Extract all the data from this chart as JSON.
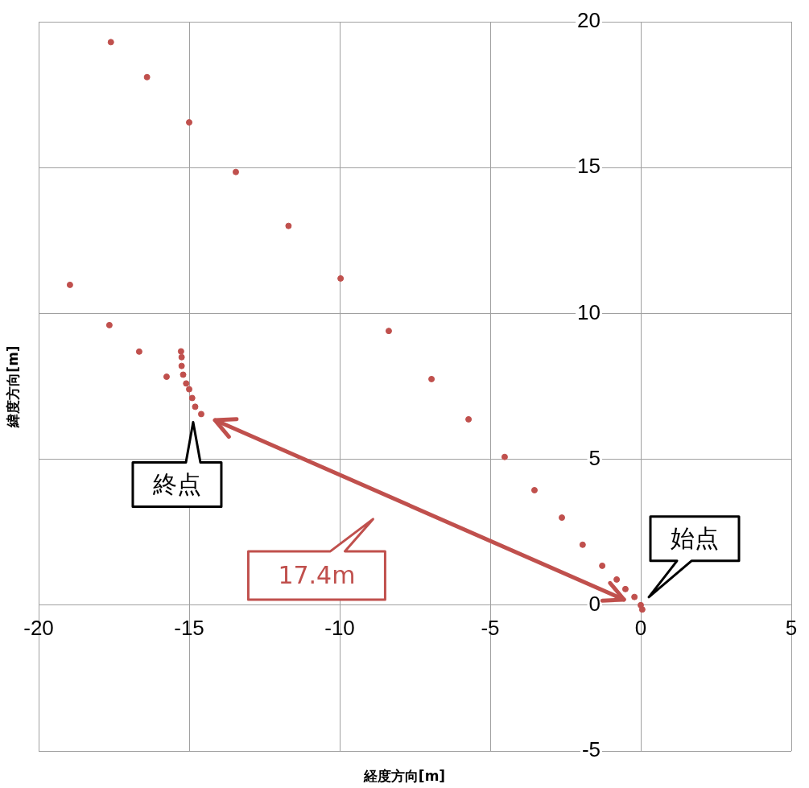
{
  "chart_data": {
    "type": "scatter",
    "xlabel": "経度方向[m]",
    "ylabel": "緯度方向[m]",
    "xlim": [
      -20,
      5
    ],
    "xticks": [
      -20,
      -15,
      -10,
      -5,
      0,
      5
    ],
    "ylim": [
      -5,
      20
    ],
    "yticks": [
      -5,
      0,
      5,
      10,
      15,
      20
    ],
    "grid": true,
    "legend": false,
    "marker": "circle",
    "series": [
      {
        "color": "#c0504d",
        "x": [
          -17.6,
          -16.4,
          -15.0,
          -13.45,
          -11.7,
          -9.97,
          -8.37,
          -6.95,
          -5.72,
          -4.52,
          -3.53,
          -2.62,
          -1.93,
          -1.28,
          -0.8,
          -0.51,
          -0.21,
          0,
          0.05,
          -18.96,
          -17.65,
          -16.66,
          -15.75,
          -15.27,
          -15.25,
          -15.25,
          -15.2,
          -15.1,
          -15.0,
          -14.9,
          -14.8,
          -14.6
        ],
        "values": [
          19.3,
          18.1,
          16.55,
          14.85,
          13.0,
          11.2,
          9.4,
          7.75,
          6.37,
          5.08,
          3.94,
          3.0,
          2.07,
          1.35,
          0.88,
          0.55,
          0.28,
          0,
          -0.15,
          10.98,
          9.6,
          8.69,
          7.83,
          8.7,
          8.5,
          8.2,
          7.9,
          7.6,
          7.4,
          7.1,
          6.8,
          6.55
        ]
      },
      {
        "type": "line",
        "marker": "none",
        "color": "#c0504d",
        "x": [
          -14.14,
          -0.56
        ],
        "values": [
          6.34,
          0.19
        ]
      }
    ],
    "annotations": [
      {
        "text": "終点",
        "x": -14.6,
        "y": 6.55
      },
      {
        "text": "始点",
        "x": 0,
        "y": 0
      },
      "17.4m"
    ]
  }
}
